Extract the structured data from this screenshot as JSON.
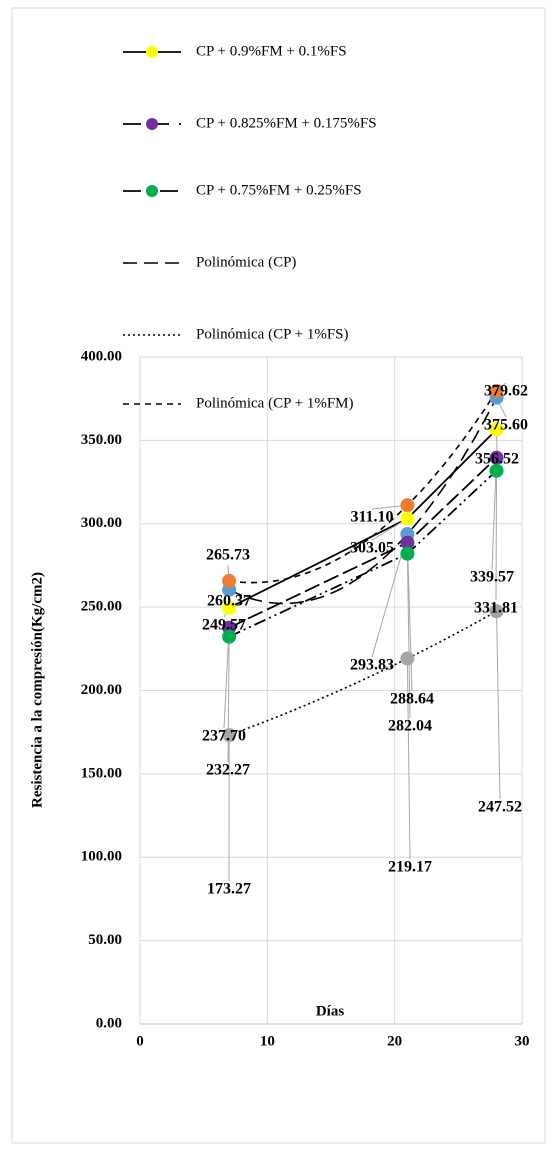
{
  "chart_data": {
    "type": "line",
    "x_label": "Días",
    "y_label": "Resistencia a la compresión(Kg/cm2)",
    "x": [
      7,
      21,
      28
    ],
    "xlim": [
      0,
      30
    ],
    "xticks": [
      0,
      10,
      20,
      30
    ],
    "ylim": [
      0,
      400
    ],
    "yticks": [
      {
        "value": 0,
        "label": "0.00"
      },
      {
        "value": 50,
        "label": "50.00"
      },
      {
        "value": 100,
        "label": "100.00"
      },
      {
        "value": 150,
        "label": "150.00"
      },
      {
        "value": 200,
        "label": "200.00"
      },
      {
        "value": 250,
        "label": "250.00"
      },
      {
        "value": 300,
        "label": "300.00"
      },
      {
        "value": 350,
        "label": "350.00"
      },
      {
        "value": 400,
        "label": "400.00"
      }
    ],
    "grid": true,
    "series": [
      {
        "color": "#5b9bd5",
        "values": [
          260.37,
          293.83,
          375.6
        ],
        "value_labels": [
          "260.37",
          "293.83",
          "375.60"
        ]
      },
      {
        "color": "#ed7d31",
        "values": [
          265.73,
          311.1,
          379.62
        ],
        "value_labels": [
          "265.73",
          "311.10",
          "379.62"
        ]
      },
      {
        "color": "#a5a5a5",
        "values": [
          173.27,
          219.17,
          247.52
        ],
        "value_labels": [
          "173.27",
          "219.17",
          "247.52"
        ]
      },
      {
        "name": "CP + 0.9%FM + 0.1%FS",
        "color": "#ffff00",
        "values": [
          249.57,
          303.05,
          356.52
        ],
        "value_labels": [
          "249.57",
          "303.05",
          "356.52"
        ]
      },
      {
        "name": "CP + 0.825%FM + 0.175%FS",
        "color": "#7030a0",
        "values": [
          237.7,
          288.64,
          339.57
        ],
        "value_labels": [
          "237.70",
          "288.64",
          "339.57"
        ]
      },
      {
        "name": "CP + 0.75%FM + 0.25%FS",
        "color": "#00b050",
        "values": [
          232.27,
          282.04,
          331.81
        ],
        "value_labels": [
          "232.27",
          "282.04",
          "331.81"
        ]
      }
    ],
    "trendlines": [
      {
        "name": "Polinómica (CP)",
        "series": 0,
        "fit": "polynomial"
      },
      {
        "name": "Polinómica (CP + 1%FS)",
        "series": 2,
        "fit": "polynomial"
      },
      {
        "name": "Polinómica (CP + 1%FM)",
        "series": 1,
        "fit": "polynomial"
      }
    ]
  }
}
